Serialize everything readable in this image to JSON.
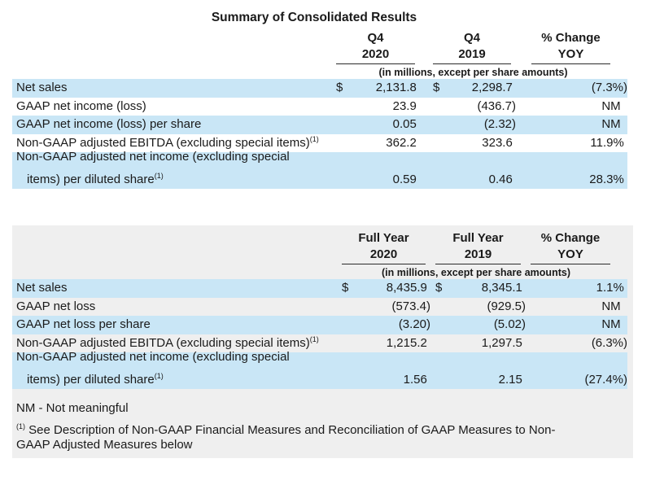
{
  "title": "Summary of Consolidated Results",
  "tables": [
    {
      "columns": [
        {
          "line1": "Q4",
          "line2": "2020"
        },
        {
          "line1": "Q4",
          "line2": "2019"
        },
        {
          "line1": "% Change",
          "line2": "YOY"
        }
      ],
      "unit_note": "(in millions, except per share amounts)",
      "rows": [
        {
          "label": "Net sales",
          "cur1": "$",
          "v1": "2,131.8 ",
          "cur2": "$",
          "v2": "2,298.7 ",
          "v3": "(7.3%)"
        },
        {
          "label": "GAAP net income (loss)",
          "v1": "23.9 ",
          "v2": "(436.7)",
          "v3": "NM  "
        },
        {
          "label": "GAAP net income (loss) per share",
          "v1": "0.05 ",
          "v2": "(2.32)",
          "v3": "NM  "
        },
        {
          "label": "Non-GAAP adjusted EBITDA (excluding special items)",
          "sup": "(1)",
          "v1": "362.2 ",
          "v2": "323.6 ",
          "v3": "11.9% "
        },
        {
          "label": "Non-GAAP adjusted net income (excluding special",
          "label2": "items) per diluted share",
          "sup2": "(1)",
          "v1": "0.59 ",
          "v2": "0.46 ",
          "v3": "28.3% "
        }
      ]
    },
    {
      "columns": [
        {
          "line1": "Full Year",
          "line2": "2020"
        },
        {
          "line1": "Full Year",
          "line2": "2019"
        },
        {
          "line1": "% Change",
          "line2": "YOY"
        }
      ],
      "unit_note": "(in millions, except per share amounts)",
      "rows": [
        {
          "label": "Net sales",
          "cur1": "$",
          "v1": "8,435.9 ",
          "cur2": "$",
          "v2": "8,345.1 ",
          "v3": "1.1% "
        },
        {
          "label": "GAAP net loss",
          "v1": "(573.4)",
          "v2": "(929.5)",
          "v3": "NM  "
        },
        {
          "label": "GAAP net loss per share",
          "v1": "(3.20)",
          "v2": "(5.02)",
          "v3": "NM  "
        },
        {
          "label": "Non-GAAP adjusted EBITDA (excluding special items)",
          "sup": "(1)",
          "v1": "1,215.2 ",
          "v2": "1,297.5 ",
          "v3": "(6.3%)"
        },
        {
          "label": "Non-GAAP adjusted net income (excluding special",
          "label2": "items) per diluted share",
          "sup2": "(1)",
          "v1": "1.56 ",
          "v2": "2.15 ",
          "v3": "(27.4%)"
        }
      ]
    }
  ],
  "footnotes": {
    "nm": "NM - Not meaningful",
    "fn1_sup": "(1)",
    "fn1_line1": "See Description of Non-GAAP Financial Measures and Reconciliation of GAAP Measures to Non-",
    "fn1_line2": "GAAP Adjusted Measures below"
  },
  "colors": {
    "highlight_blue": "#c9e6f6",
    "panel_gray": "#efefef",
    "text": "#1a1a1a"
  }
}
